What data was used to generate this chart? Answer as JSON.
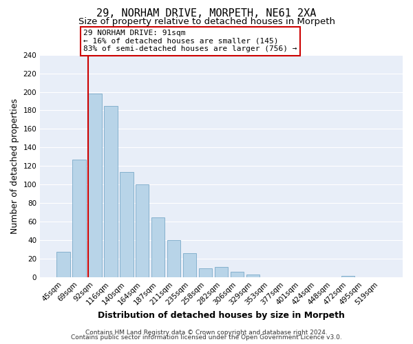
{
  "title": "29, NORHAM DRIVE, MORPETH, NE61 2XA",
  "subtitle": "Size of property relative to detached houses in Morpeth",
  "xlabel": "Distribution of detached houses by size in Morpeth",
  "ylabel": "Number of detached properties",
  "bar_labels": [
    "45sqm",
    "69sqm",
    "92sqm",
    "116sqm",
    "140sqm",
    "164sqm",
    "187sqm",
    "211sqm",
    "235sqm",
    "258sqm",
    "282sqm",
    "306sqm",
    "329sqm",
    "353sqm",
    "377sqm",
    "401sqm",
    "424sqm",
    "448sqm",
    "472sqm",
    "495sqm",
    "519sqm"
  ],
  "bar_values": [
    28,
    127,
    198,
    185,
    114,
    100,
    65,
    40,
    26,
    10,
    11,
    6,
    3,
    0,
    0,
    0,
    0,
    0,
    2,
    0,
    0
  ],
  "bar_color": "#b8d4e8",
  "bar_edge_color": "#7aaac8",
  "highlight_bar_index": 2,
  "highlight_color": "#cc0000",
  "annotation_title": "29 NORHAM DRIVE: 91sqm",
  "annotation_line1": "← 16% of detached houses are smaller (145)",
  "annotation_line2": "83% of semi-detached houses are larger (756) →",
  "annotation_box_color": "#ffffff",
  "annotation_box_edge": "#cc0000",
  "ylim": [
    0,
    240
  ],
  "yticks": [
    0,
    20,
    40,
    60,
    80,
    100,
    120,
    140,
    160,
    180,
    200,
    220,
    240
  ],
  "footer_line1": "Contains HM Land Registry data © Crown copyright and database right 2024.",
  "footer_line2": "Contains public sector information licensed under the Open Government Licence v3.0.",
  "background_color": "#ffffff",
  "plot_bg_color": "#e8eef8",
  "grid_color": "#ffffff",
  "title_fontsize": 11,
  "subtitle_fontsize": 9.5,
  "axis_label_fontsize": 9,
  "tick_fontsize": 7.5,
  "footer_fontsize": 6.5
}
